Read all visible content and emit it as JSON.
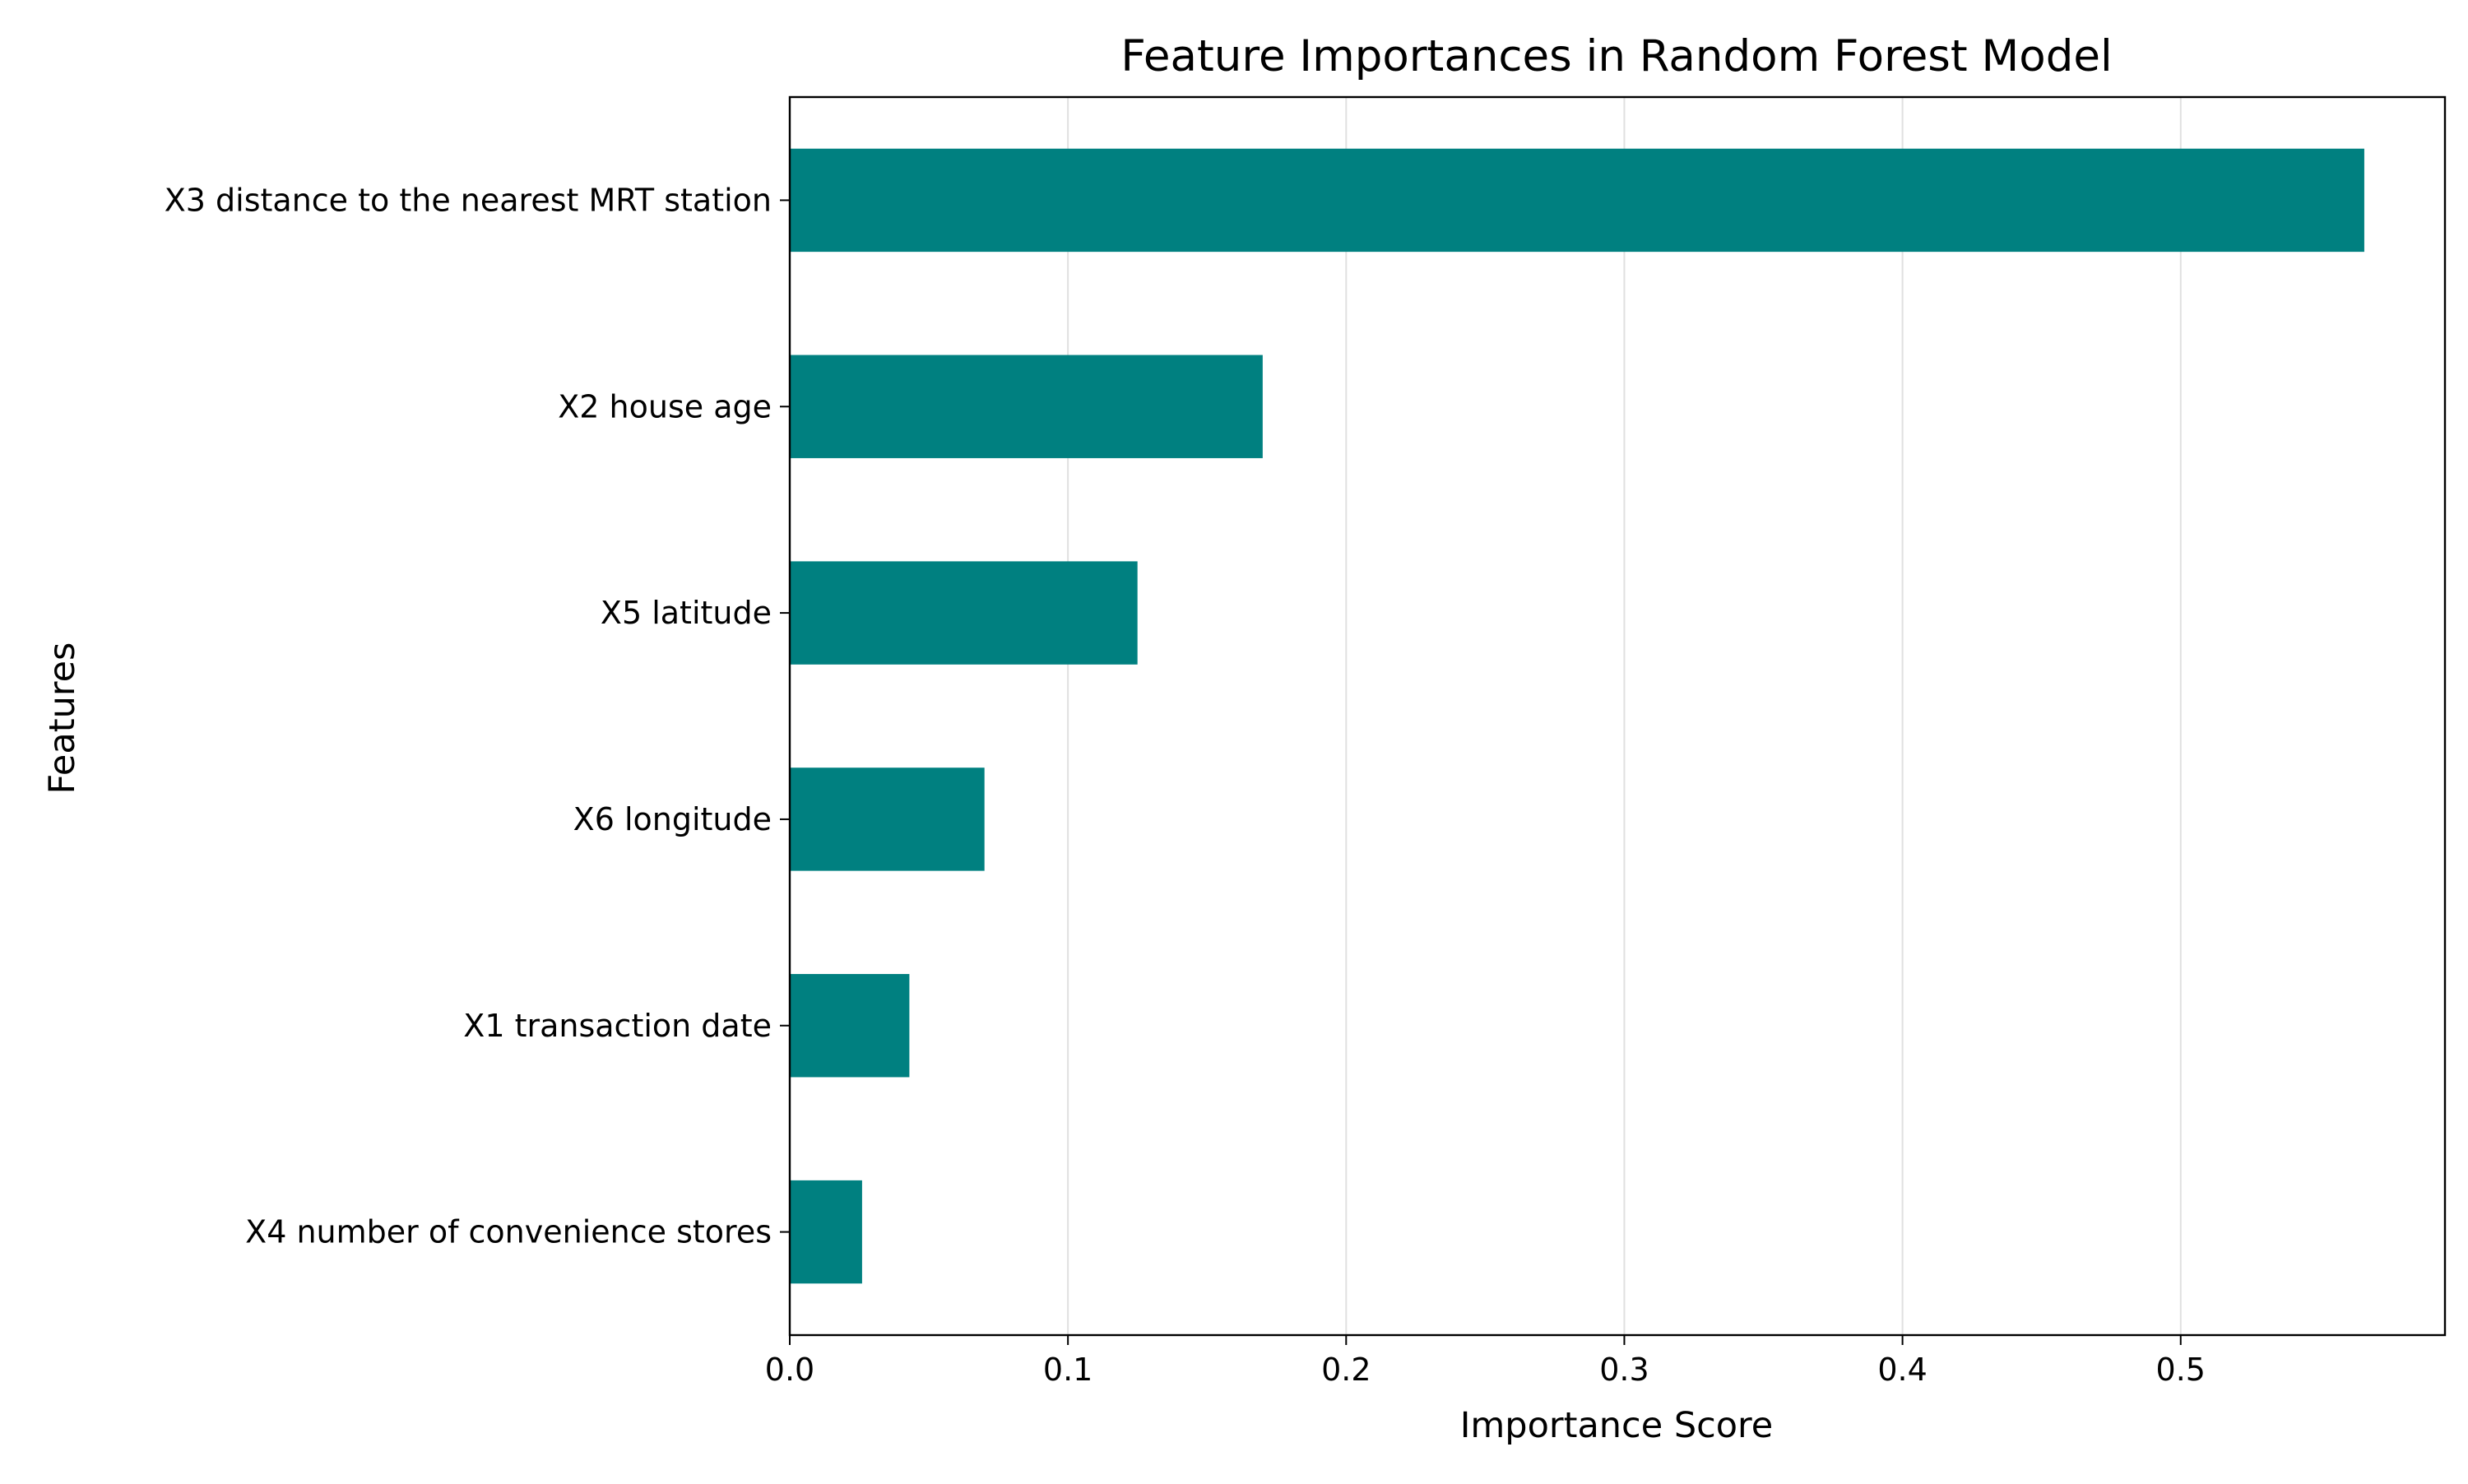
{
  "colors": {
    "bar": "#008080",
    "grid": "#e0e0e0",
    "axis": "#000000",
    "background": "#ffffff"
  },
  "chart_data": {
    "type": "bar",
    "orientation": "horizontal",
    "title": "Feature Importances in Random Forest Model",
    "xlabel": "Importance Score",
    "ylabel": "Features",
    "xlim": [
      0,
      0.595
    ],
    "grid": "vertical",
    "legend": "none",
    "x_ticks": [
      0.0,
      0.1,
      0.2,
      0.3,
      0.4,
      0.5
    ],
    "x_tick_labels": [
      "0.0",
      "0.1",
      "0.2",
      "0.3",
      "0.4",
      "0.5"
    ],
    "categories": [
      "X3 distance to the nearest MRT station",
      "X2 house age",
      "X5 latitude",
      "X6 longitude",
      "X1 transaction date",
      "X4 number of convenience stores"
    ],
    "values": [
      0.566,
      0.17,
      0.125,
      0.07,
      0.043,
      0.026
    ]
  }
}
